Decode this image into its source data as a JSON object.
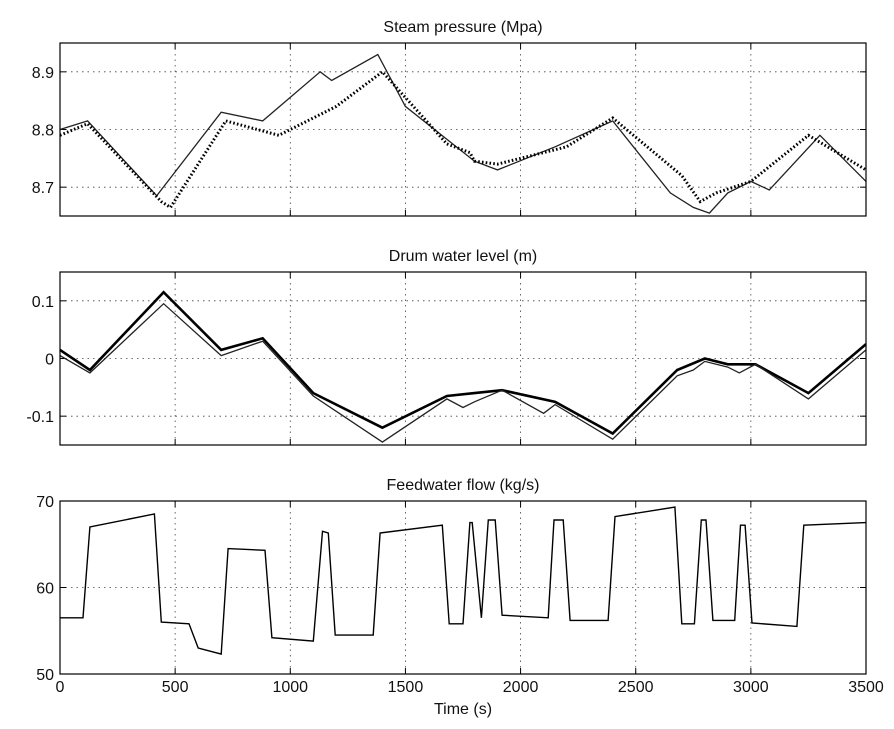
{
  "chart_data": [
    {
      "type": "line",
      "title": "Steam pressure (Mpa)",
      "xlim": [
        0,
        3500
      ],
      "ylim": [
        8.65,
        8.95
      ],
      "yticks": [
        8.7,
        8.8,
        8.9
      ],
      "ytick_labels": [
        "8.7",
        "8.8",
        "8.9"
      ],
      "xticks": [
        0,
        500,
        1000,
        1500,
        2000,
        2500,
        3000,
        3500
      ],
      "grid": true,
      "series": [
        {
          "style": "solid-thin",
          "x": [
            0,
            120,
            420,
            700,
            880,
            1130,
            1180,
            1380,
            1500,
            1800,
            1900,
            2150,
            2400,
            2650,
            2750,
            2820,
            2900,
            3000,
            3080,
            3300,
            3500
          ],
          "y": [
            8.8,
            8.815,
            8.685,
            8.83,
            8.815,
            8.9,
            8.885,
            8.93,
            8.84,
            8.745,
            8.73,
            8.77,
            8.815,
            8.69,
            8.665,
            8.655,
            8.69,
            8.71,
            8.695,
            8.79,
            8.71
          ]
        },
        {
          "style": "dotted-thick",
          "x": [
            0,
            120,
            440,
            480,
            720,
            950,
            1200,
            1400,
            1680,
            1780,
            1800,
            1900,
            2200,
            2400,
            2700,
            2780,
            2850,
            3000,
            3250,
            3500
          ],
          "y": [
            8.79,
            8.81,
            8.675,
            8.665,
            8.815,
            8.79,
            8.84,
            8.9,
            8.775,
            8.76,
            8.745,
            8.74,
            8.77,
            8.82,
            8.72,
            8.675,
            8.69,
            8.71,
            8.79,
            8.73
          ]
        }
      ]
    },
    {
      "type": "line",
      "title": "Drum water level (m)",
      "xlim": [
        0,
        3500
      ],
      "ylim": [
        -0.15,
        0.15
      ],
      "yticks": [
        -0.1,
        0,
        0.1
      ],
      "ytick_labels": [
        "-0.1",
        "0",
        "0.1"
      ],
      "xticks": [
        0,
        500,
        1000,
        1500,
        2000,
        2500,
        3000,
        3500
      ],
      "grid": true,
      "series": [
        {
          "style": "solid-thick",
          "x": [
            0,
            130,
            450,
            700,
            880,
            1100,
            1400,
            1680,
            1800,
            1920,
            2150,
            2400,
            2680,
            2800,
            2900,
            3020,
            3250,
            3500
          ],
          "y": [
            0.015,
            -0.02,
            0.115,
            0.015,
            0.035,
            -0.06,
            -0.12,
            -0.065,
            -0.06,
            -0.055,
            -0.075,
            -0.13,
            -0.02,
            0,
            -0.01,
            -0.01,
            -0.06,
            0.025
          ]
        },
        {
          "style": "solid-thin",
          "x": [
            0,
            130,
            450,
            700,
            880,
            1100,
            1400,
            1680,
            1750,
            1800,
            1920,
            2100,
            2150,
            2400,
            2680,
            2750,
            2800,
            2900,
            2950,
            3020,
            3250,
            3500
          ],
          "y": [
            0.005,
            -0.025,
            0.095,
            0.005,
            0.03,
            -0.065,
            -0.145,
            -0.07,
            -0.085,
            -0.075,
            -0.055,
            -0.095,
            -0.08,
            -0.14,
            -0.03,
            -0.02,
            -0.005,
            -0.015,
            -0.025,
            -0.01,
            -0.07,
            0.015
          ]
        }
      ]
    },
    {
      "type": "line",
      "title": "Feedwater flow (kg/s)",
      "xlabel": "Time (s)",
      "xlim": [
        0,
        3500
      ],
      "ylim": [
        50,
        70
      ],
      "yticks": [
        50,
        60,
        70
      ],
      "ytick_labels": [
        "50",
        "60",
        "70"
      ],
      "xticks": [
        0,
        500,
        1000,
        1500,
        2000,
        2500,
        3000,
        3500
      ],
      "xtick_labels": [
        "0",
        "500",
        "1000",
        "1500",
        "2000",
        "2500",
        "3000",
        "3500"
      ],
      "grid": true,
      "series": [
        {
          "style": "solid",
          "x": [
            0,
            100,
            130,
            410,
            440,
            560,
            600,
            700,
            730,
            890,
            920,
            1100,
            1140,
            1165,
            1195,
            1225,
            1360,
            1390,
            1660,
            1690,
            1750,
            1780,
            1790,
            1830,
            1860,
            1890,
            1920,
            2120,
            2145,
            2185,
            2215,
            2380,
            2410,
            2670,
            2700,
            2755,
            2785,
            2805,
            2835,
            2930,
            2955,
            2975,
            3005,
            3200,
            3230,
            3500
          ],
          "y": [
            56.5,
            56.5,
            67,
            68.5,
            56,
            55.8,
            53,
            52.3,
            64.5,
            64.3,
            54.2,
            53.8,
            66.5,
            66.3,
            54.5,
            54.5,
            54.5,
            66.3,
            67.2,
            55.8,
            55.8,
            67.5,
            67.5,
            56.5,
            67.8,
            67.8,
            56.8,
            56.5,
            67.8,
            67.8,
            56.2,
            56.2,
            68.2,
            69.3,
            55.8,
            55.8,
            67.8,
            67.8,
            56.2,
            56.2,
            67.2,
            67.2,
            55.9,
            55.5,
            67.2,
            67.5
          ]
        }
      ]
    }
  ]
}
